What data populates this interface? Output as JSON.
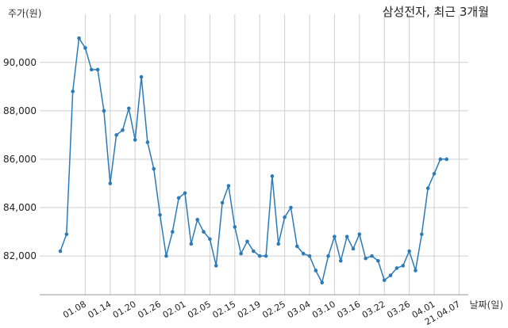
{
  "chart_data": {
    "type": "line",
    "title": "삼성전자, 최근 3개월",
    "xlabel": "날짜(일)",
    "ylabel": "주가(원)",
    "ylim": [
      80400,
      91400
    ],
    "yticks": [
      82000,
      84000,
      86000,
      88000,
      90000
    ],
    "ytick_labels": [
      "82,000",
      "84,000",
      "86,000",
      "88,000",
      "90,000"
    ],
    "grid": true,
    "color": "#2b7bb9",
    "xtick_labels": [
      "01.08",
      "01.14",
      "01.20",
      "01.26",
      "02.01",
      "02.05",
      "02.15",
      "02.19",
      "02.25",
      "03.04",
      "03.10",
      "03.16",
      "03.22",
      "03.26",
      "04.01",
      "21.04.07"
    ],
    "xtick_index": [
      4,
      8,
      12,
      16,
      20,
      24,
      28,
      32,
      36,
      40,
      44,
      48,
      52,
      56,
      60,
      64
    ],
    "series": [
      {
        "values": [
          82200,
          82900,
          88800,
          91000,
          90600,
          89700,
          89700,
          88000,
          85000,
          87000,
          87200,
          88100,
          86800,
          89400,
          86700,
          85600,
          83700,
          82000,
          83000,
          84400,
          84600,
          82500,
          83500,
          83000,
          82700,
          81600,
          84200,
          84900,
          83200,
          82100,
          82600,
          82200,
          82000,
          82000,
          85300,
          82500,
          83600,
          84000,
          82400,
          82100,
          82000,
          81400,
          80900,
          82000,
          82800,
          81800,
          82800,
          82300,
          82900,
          81900,
          82000,
          81800,
          81000,
          81200,
          81500,
          81600,
          82200,
          81400,
          82900,
          84800,
          85400,
          86000,
          86000
        ]
      }
    ]
  }
}
